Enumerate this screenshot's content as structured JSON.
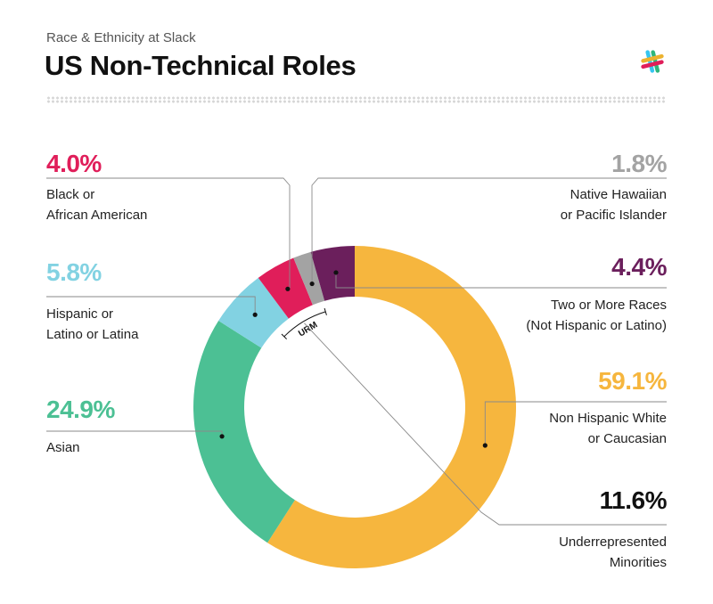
{
  "header": {
    "subtitle": "Race & Ethnicity at Slack",
    "title": "US Non-Technical Roles"
  },
  "colors": {
    "black": "#E01E5A",
    "hispanic": "#82D2E2",
    "asian": "#4CC094",
    "hawaiian": "#A3A3A3",
    "two_or_more": "#6B1F5C",
    "white": "#F6B63E",
    "urm": "#111111",
    "leader": "#8a8a8a"
  },
  "labels": {
    "black": {
      "pct": "4.0%",
      "line1": "Black or",
      "line2": "African American"
    },
    "hispanic": {
      "pct": "5.8%",
      "line1": "Hispanic or",
      "line2": "Latino or Latina"
    },
    "asian": {
      "pct": "24.9%",
      "line1": "Asian"
    },
    "hawaiian": {
      "pct": "1.8%",
      "line1": "Native Hawaiian",
      "line2": "or Pacific Islander"
    },
    "two_or_more": {
      "pct": "4.4%",
      "line1": "Two or More Races",
      "line2": "(Not Hispanic or Latino)"
    },
    "white": {
      "pct": "59.1%",
      "line1": "Non Hispanic White",
      "line2": "or Caucasian"
    },
    "urm": {
      "pct": "11.6%",
      "line1": "Underrepresented",
      "line2": "Minorities"
    }
  },
  "urm_arc_label": "URM",
  "chart_data": {
    "type": "pie",
    "title": "US Non-Technical Roles",
    "subtitle": "Race & Ethnicity at Slack",
    "donut": true,
    "slices": [
      {
        "key": "white",
        "label": "Non Hispanic White or Caucasian",
        "value": 59.1
      },
      {
        "key": "asian",
        "label": "Asian",
        "value": 24.9
      },
      {
        "key": "hispanic",
        "label": "Hispanic or Latino or Latina",
        "value": 5.8
      },
      {
        "key": "black",
        "label": "Black or African American",
        "value": 4.0
      },
      {
        "key": "hawaiian",
        "label": "Native Hawaiian or Pacific Islander",
        "value": 1.8
      },
      {
        "key": "two_or_more",
        "label": "Two or More Races (Not Hispanic or Latino)",
        "value": 4.4
      }
    ],
    "annotations": [
      {
        "label": "Underrepresented Minorities",
        "value": 11.6,
        "arc_label": "URM"
      }
    ]
  }
}
